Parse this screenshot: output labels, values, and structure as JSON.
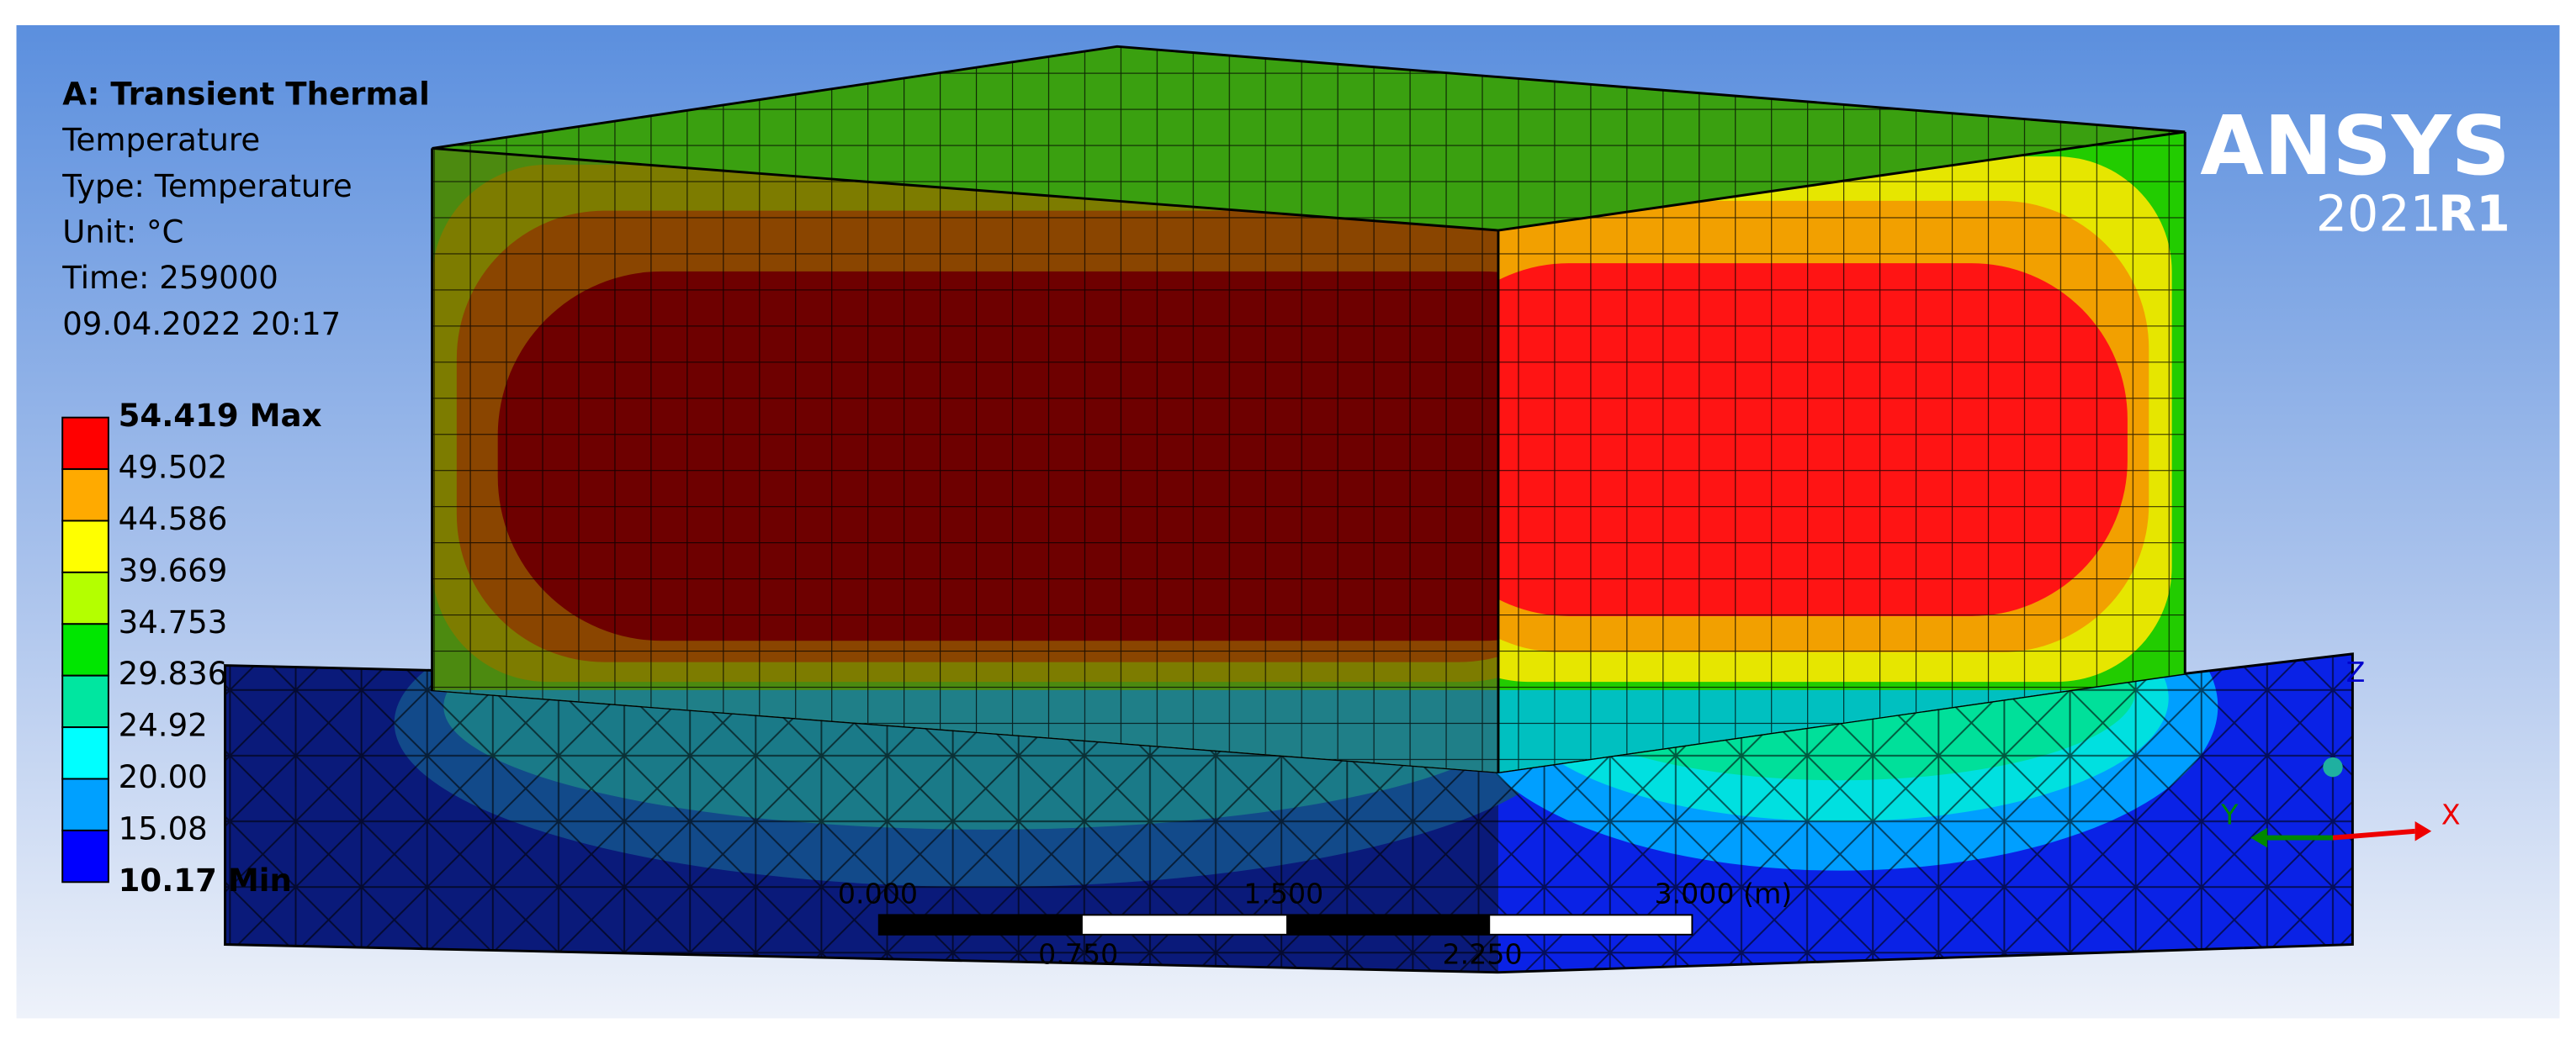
{
  "header": {
    "title": "A: Transient Thermal",
    "lines": [
      "Temperature",
      "Type: Temperature",
      "Unit: °C",
      "Time: 259000",
      "09.04.2022 20:17"
    ]
  },
  "legend": {
    "labels": [
      "54.419 Max",
      "49.502",
      "44.586",
      "39.669",
      "34.753",
      "29.836",
      "24.92",
      "20.00",
      "15.08",
      "10.17 Min"
    ],
    "colors": [
      "#ff0000",
      "#ffaa00",
      "#ffff00",
      "#b4ff00",
      "#00e600",
      "#00e6a0",
      "#00ffff",
      "#00a0ff",
      "#0000ff"
    ]
  },
  "logo": {
    "name": "ANSYS",
    "version": "2021",
    "release": "R1"
  },
  "scale_bar": {
    "top_labels": [
      "0.000",
      "1.500",
      "3.000 (m)"
    ],
    "bottom_labels": [
      "0.750",
      "2.250"
    ]
  },
  "triad": {
    "x": "X",
    "y": "Y",
    "z": "Z"
  }
}
